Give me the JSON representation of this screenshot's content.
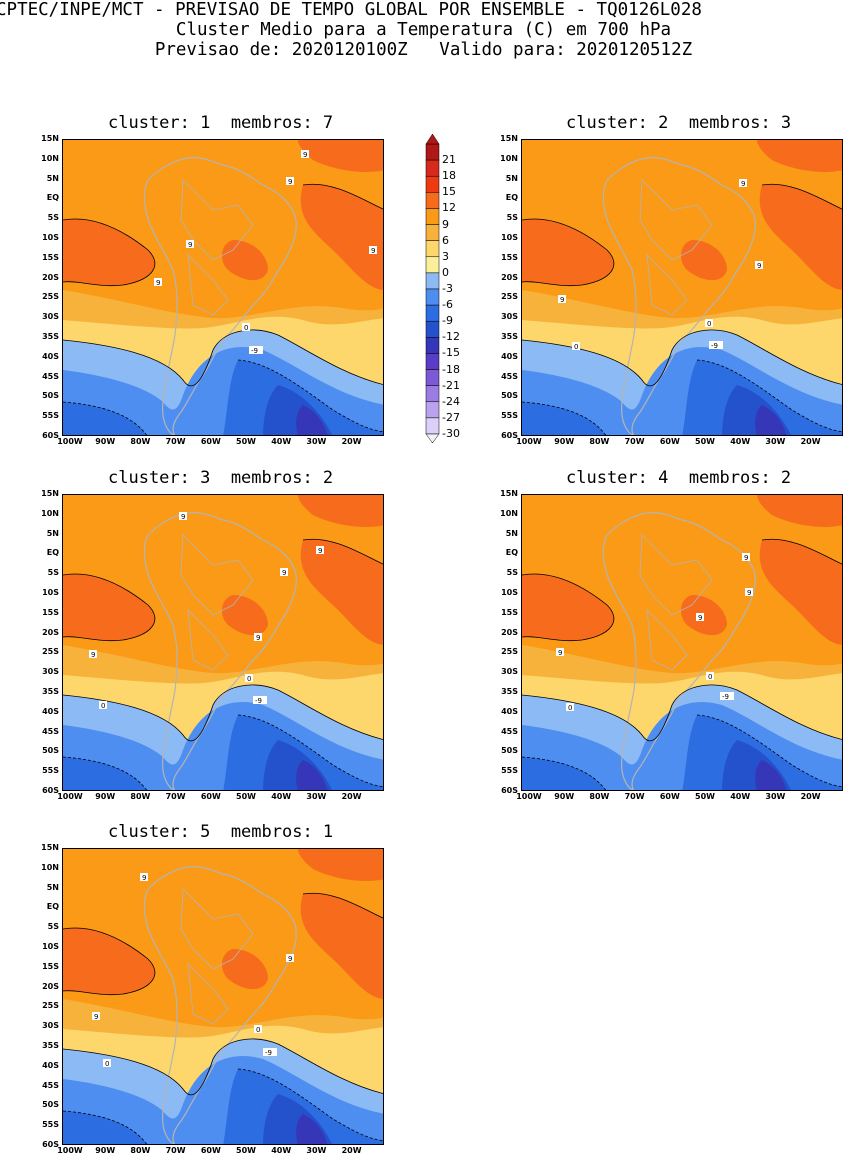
{
  "header": {
    "line1": "CPTEC/INPE/MCT - PREVISAO DE TEMPO GLOBAL POR ENSEMBLE - TQ0126L028",
    "line2": "Cluster Medio para a Temperatura (C) em 700 hPa",
    "line3": "Previsao de: 2020120100Z   Valido para: 2020120512Z"
  },
  "panels": [
    {
      "title": "cluster: 1  membros: 7"
    },
    {
      "title": "cluster: 2  membros: 3"
    },
    {
      "title": "cluster: 3  membros: 2"
    },
    {
      "title": "cluster: 4  membros: 2"
    },
    {
      "title": "cluster: 5  membros: 1"
    }
  ],
  "axes": {
    "lat_labels": [
      "15N",
      "10N",
      "5N",
      "EQ",
      "5S",
      "10S",
      "15S",
      "20S",
      "25S",
      "30S",
      "35S",
      "40S",
      "45S",
      "50S",
      "55S",
      "60S"
    ],
    "lon_labels": [
      "100W",
      "90W",
      "80W",
      "70W",
      "60W",
      "50W",
      "40W",
      "30W",
      "20W"
    ]
  },
  "colorbar": {
    "levels": [
      "21",
      "18",
      "15",
      "12",
      "9",
      "6",
      "3",
      "0",
      "-3",
      "-6",
      "-9",
      "-12",
      "-15",
      "-18",
      "-21",
      "-24",
      "-27",
      "-30"
    ],
    "colors": [
      "#b01818",
      "#d62a1c",
      "#ee3a12",
      "#f76b1c",
      "#fa9a16",
      "#f7b23c",
      "#fdd66c",
      "#fbef9a",
      "#8cbaf4",
      "#4e8ef0",
      "#2c6ee2",
      "#2452cc",
      "#3636b8",
      "#5a3cc8",
      "#7c5ad6",
      "#9a7ce2",
      "#baa2ee",
      "#dcd0f8"
    ]
  },
  "contour_labels": {
    "p1": [
      "9",
      "9",
      "9",
      "9",
      "9",
      "0",
      "-9"
    ],
    "p2": [
      "9",
      "9",
      "9",
      "0",
      "-9",
      "0"
    ],
    "p3": [
      "9",
      "9",
      "9",
      "9",
      "9",
      "0",
      "0",
      "-9"
    ],
    "p4": [
      "9",
      "9",
      "9",
      "9",
      "0",
      "-9",
      "0"
    ],
    "p5": [
      "9",
      "9",
      "9",
      "0",
      "0",
      "-9"
    ]
  }
}
